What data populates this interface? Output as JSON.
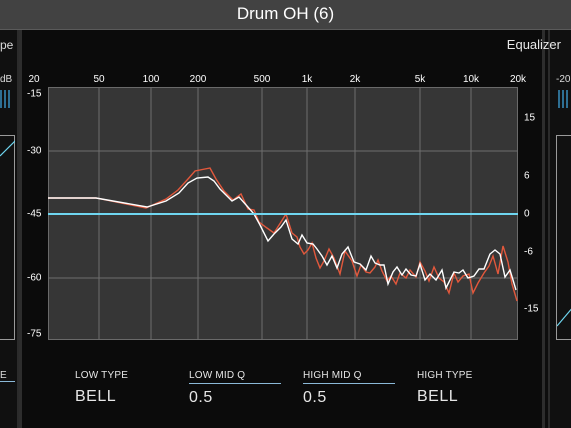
{
  "window": {
    "title": "Drum OH (6)"
  },
  "left_strip": {
    "top_text": "pe",
    "db_text": "dB",
    "bottom_text": "E"
  },
  "right_strip": {
    "top_text": "-20"
  },
  "eq": {
    "panel_name": "Equalizer",
    "x_ticks": [
      "20",
      "50",
      "100",
      "200",
      "500",
      "1k",
      "2k",
      "5k",
      "10k",
      "20k"
    ],
    "left_ticks": [
      "-15",
      "-30",
      "-45",
      "-60",
      "-75"
    ],
    "right_ticks": [
      "15",
      "6",
      "0",
      "-6",
      "-15"
    ],
    "colors": {
      "flat_line": "#6fd6f0",
      "analyzer_white": "#ffffff",
      "analyzer_red": "#e2583c",
      "plot_bg": "#363636"
    }
  },
  "params": [
    {
      "name": "LOW TYPE",
      "value": "BELL"
    },
    {
      "name": "LOW MID Q",
      "value": "0.5"
    },
    {
      "name": "HIGH MID Q",
      "value": "0.5"
    },
    {
      "name": "HIGH TYPE",
      "value": "BELL"
    }
  ]
}
